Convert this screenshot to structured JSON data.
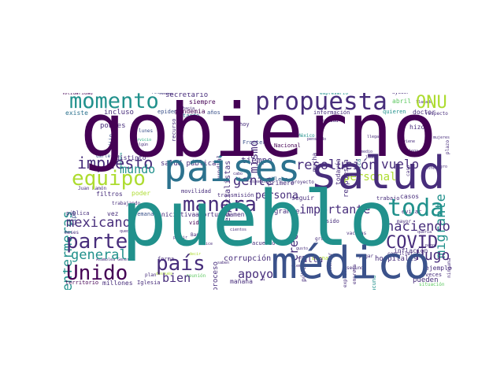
{
  "colors": {
    "dark_purple": "#440154",
    "purple": "#472d7b",
    "indigo": "#3b528b",
    "blue": "#2c728e",
    "teal": "#21918c",
    "green_teal": "#28ae80",
    "green": "#5ec962",
    "lime": "#addc30",
    "yellow": "#fde725"
  },
  "words": {
    "gobierno": "gobierno",
    "pueblo": "pueblo",
    "salud": "salud",
    "paises": "países",
    "medico": "médico",
    "propuesta": "propuesta",
    "momento": "momento",
    "equipo": "equipo",
    "manera": "manera",
    "toda": "toda",
    "parte": "parte",
    "unido": "Unido",
    "pais": "país",
    "covid": "COVID",
    "onu": "ONU",
    "hugo": "Hugo",
    "haciendo": "haciendo",
    "resolucion": "resolución",
    "impuesto": "impuesto",
    "mundo": "mundo",
    "mexicano": "mexicano",
    "general": "general",
    "gente": "gente",
    "mismo": "mismo",
    "enfermeras": "enfermeras",
    "migrante": "migrante",
    "importante": "importante",
    "personal": "personal",
    "persona": "persona",
    "vuelo": "vuelo",
    "apoyo": "apoyo",
    "bien": "bien",
    "creo": "creo",
    "tiempo": "tiempo",
    "corrupcion": "corrupción",
    "grande": "grande",
    "hospitales": "hospitales",
    "falta": "falta",
    "pueden": "pueden",
    "proceso": "proceso",
    "manana": "mañana",
    "salud_publica": "salud pública",
    "secretario": "secretario",
    "siempre": "siempre",
    "pandemia": "pandemia",
    "especialistas": "especialistas",
    "mundial": "mundial",
    "anos": "años",
    "informacion": "información",
    "epidemia": "epidemia",
    "incluso": "incluso",
    "existe": "existe",
    "solidaridad": "solidaridad",
    "recurso": "recurso",
    "respuesta": "respuesta",
    "doctor": "doctor",
    "quieren": "quieren",
    "abril": "abril",
    "respecto": "respecto",
    "hizo": "hizo",
    "pobres": "pobres",
    "distinto": "distinto",
    "filtros": "filtros",
    "poder": "poder",
    "movilidad": "movilidad",
    "transmision": "transmisión",
    "vida": "vida",
    "banco": "Banco",
    "iniciativa": "iniciativa",
    "afortunadamente": "afortunadamente",
    "semana": "semana",
    "vez": "vez",
    "mexico": "México",
    "hoy": "hoy",
    "nacional": "Nacional",
    "frontera": "Frontera",
    "ejemplo": "ejemplo",
    "veces": "veces",
    "casos": "casos",
    "trabajo": "trabajo",
    "seguir": "seguir",
    "sido": "sido",
    "primero": "primero",
    "problema": "problema",
    "acuerdo": "acuerdo",
    "hacemos": "hacemos",
    "iglesia": "Iglesia",
    "millones": "millones",
    "territorio": "territorio",
    "reunion": "reunión",
    "situacion": "situación",
    "publica": "pública",
    "tipo": "tipo",
    "juan_ramon": "Juan Ramón",
    "darle": "darle",
    "trabajando": "trabajando",
    "quedan": "quedan",
    "meses": "meses",
    "hecho": "hecho",
    "dijo": "dijo",
    "medica": "médica",
    "todavia": "todavía",
    "mucha": "mucha",
    "verdad": "verdad",
    "ayudar": "ayudar",
    "plan": "plan",
    "forma": "forma",
    "tarde": "tarde",
    "lunes": "lunes",
    "evitar": "evitar",
    "inflacion": "inflación",
    "mayor": "mayor",
    "vacunas": "vacunas",
    "empresario": "empresario",
    "ciudad": "ciudad",
    "cabo": "cabo",
    "proyecto": "proyecto",
    "espacio": "espacio",
    "llegar": "llegar",
    "decir": "decir",
    "hacia": "hacia",
    "dice": "dice",
    "buena": "buena",
    "gusto": "gusto",
    "publico": "público",
    "ir": "ir",
    "elemento": "elemento",
    "caso": "caso",
    "pagar": "pagar",
    "campana": "campaña",
    "servicio": "servicio",
    "algun": "algún",
    "enfermo": "enfermo",
    "medio": "medio",
    "canciller": "canciller",
    "segundo": "segundo",
    "cientos": "cientos",
    "grupo": "grupo",
    "partir": "partir",
    "saben": "saben",
    "seguro": "seguro",
    "asamblea_general": "Asamblea General",
    "acceso": "acceso",
    "mundo_ciudad": "cada",
    "gobernador": "gobernador",
    "hubo": "hubo",
    "pago": "pago",
    "hasta": "hasta",
    "llamado": "llamado",
    "hospital": "hospital",
    "tomar": "tomar",
    "viene": "viene",
    "fuerza": "fuerza",
    "estado": "estado",
    "pensando": "pensando",
    "economia": "economía",
    "empresa": "empresa",
    "sector": "sector",
    "dieron": "dieron",
    "llega": "llega",
    "lado": "lado",
    "quiero": "quiero",
    "quieria": "queria",
    "ninguna": "ninguna",
    "plazo": "plazo",
    "mujeres": "mujeres",
    "ciudadanos": "ciudadanos",
    "padre": "padre",
    "siendo": "siendo",
    "laboral": "laboral",
    "secretaria": "secretaría",
    "trabajadores": "trabajadores",
    "nuevo": "nuevo",
    "proximo": "próximo",
    "vacuna": "vacuna",
    "explicar": "explicar",
    "atender": "atender",
    "medicos": "médicos",
    "cuenta": "cuenta",
    "equipos": "equipos",
    "especializado": "especializado",
    "despues": "después",
    "ningun": "ningún",
    "esperamos": "esperamos",
    "suelo": "suelo"
  }
}
